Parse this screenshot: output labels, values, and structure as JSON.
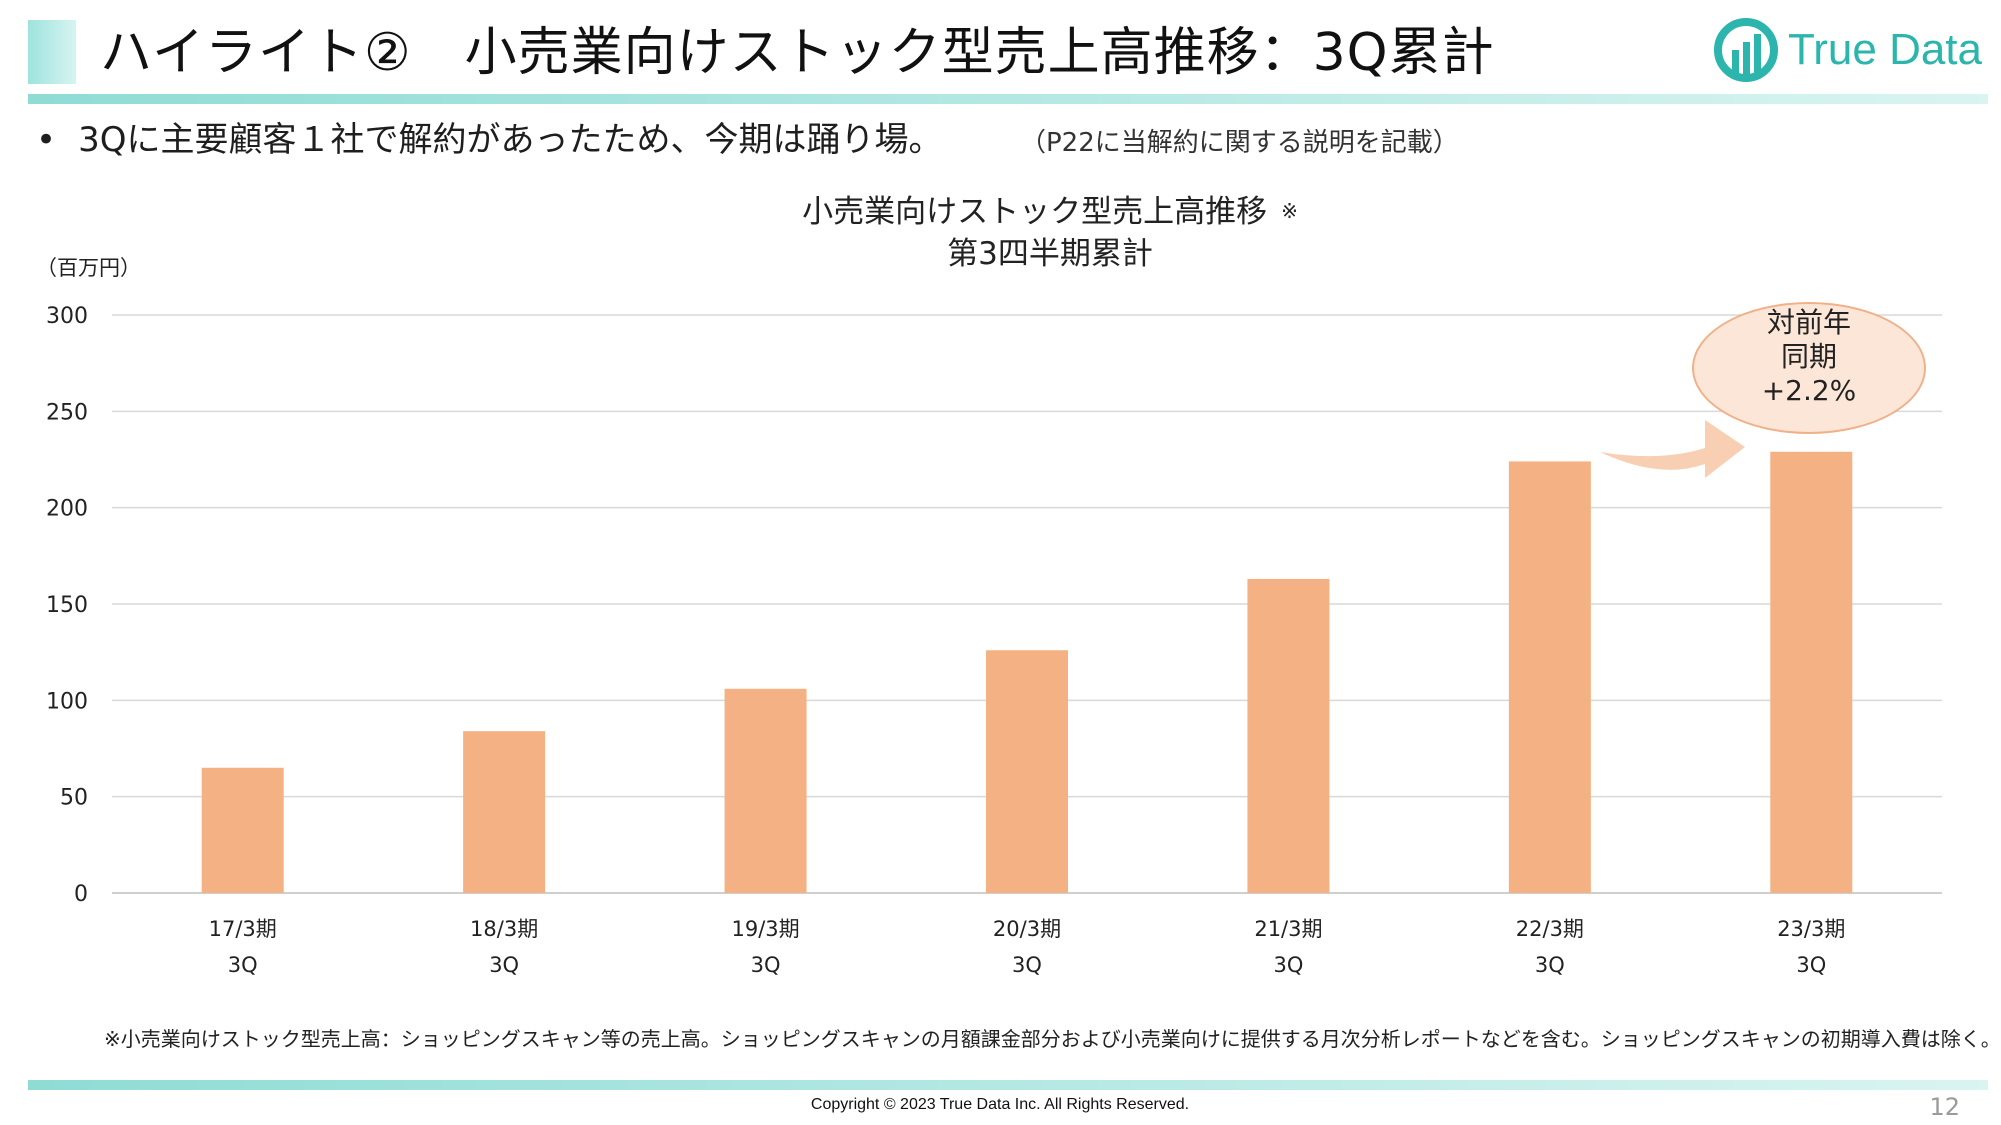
{
  "header": {
    "title": "ハイライト②　小売業向けストック型売上高推移：3Q累計",
    "logo_text": "True Data"
  },
  "bullet": {
    "text": "3Qに主要顧客１社で解約があったため、今期は踊り場。",
    "note": "（P22に当解約に関する説明を記載）"
  },
  "callout": {
    "line1": "対前年",
    "line2": "同期",
    "line3": "+2.2%"
  },
  "footnote": "※小売業向けストック型売上高：ショッピングスキャン等の売上高。ショッピングスキャンの月額課金部分および小売業向けに提供する月次分析レポートなどを含む。ショッピングスキャンの初期導入費は除く。",
  "footer": {
    "copyright": "Copyright © 2023 True Data Inc. All Rights Reserved.",
    "page_number": "12"
  },
  "colors": {
    "bar": "#f4b183",
    "accent": "#2bb5ac",
    "rule": "#a3e4de",
    "grid": "#d9d9d9",
    "arrow": "#f8cfb2"
  },
  "chart_data": {
    "type": "bar",
    "title_line1": "小売業向けストック型売上高推移",
    "title_mark": "※",
    "title_line2": "第3四半期累計",
    "unit_label": "（百万円）",
    "categories": [
      "17/3期",
      "18/3期",
      "19/3期",
      "20/3期",
      "21/3期",
      "22/3期",
      "23/3期"
    ],
    "category_sublabels": [
      "3Q",
      "3Q",
      "3Q",
      "3Q",
      "3Q",
      "3Q",
      "3Q"
    ],
    "values": [
      65,
      84,
      106,
      126,
      163,
      224,
      229
    ],
    "ylim": [
      0,
      300
    ],
    "yticks": [
      0,
      50,
      100,
      150,
      200,
      250,
      300
    ],
    "grid": true,
    "legend": "none"
  }
}
